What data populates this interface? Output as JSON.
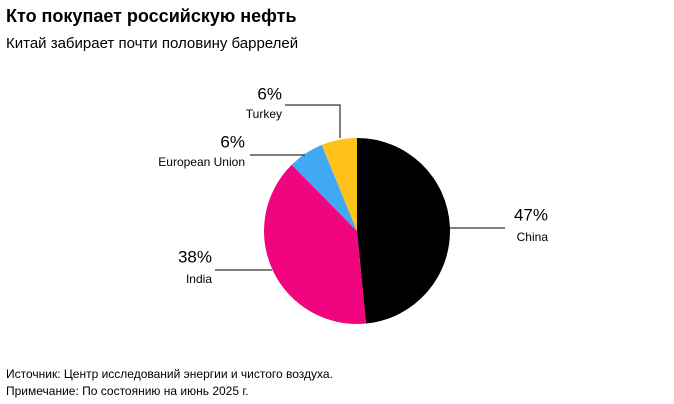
{
  "chart_data": {
    "type": "pie",
    "title": "Кто покупает российскую нефть",
    "subtitle": "Китай забирает почти половину баррелей",
    "categories": [
      "China",
      "India",
      "European Union",
      "Turkey"
    ],
    "values": [
      47,
      38,
      6,
      6
    ],
    "value_labels": [
      "47%",
      "38%",
      "6%",
      "6%"
    ],
    "colors": [
      "#000000",
      "#f0047f",
      "#3fa9f5",
      "#ffc21a"
    ],
    "notes": [
      "Источник: Центр исследований энергии и чистого воздуха.",
      "Примечание: По состоянию на июнь 2025 г."
    ]
  }
}
